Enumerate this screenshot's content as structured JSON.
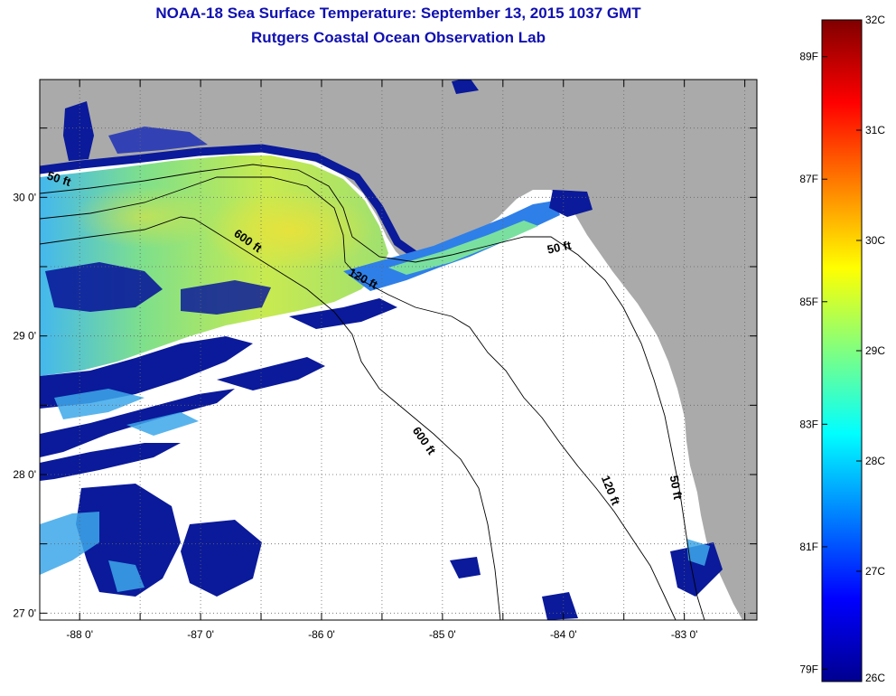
{
  "title_line1": "NOAA-18 Sea Surface Temperature:  September 13, 2015 1037 GMT",
  "title_line2": "Rutgers Coastal Ocean Observation Lab",
  "map": {
    "lon_range": [
      -88.33,
      -82.4
    ],
    "lat_range": [
      26.95,
      30.85
    ],
    "lat_ticks": [
      {
        "value": 30,
        "label": "30 0'"
      },
      {
        "value": 29,
        "label": "29 0'"
      },
      {
        "value": 28,
        "label": "28 0'"
      },
      {
        "value": 27,
        "label": "27 0'"
      }
    ],
    "lon_ticks": [
      {
        "value": -88,
        "label": "-88 0'"
      },
      {
        "value": -87,
        "label": "-87 0'"
      },
      {
        "value": -86,
        "label": "-86 0'"
      },
      {
        "value": -85,
        "label": "-85 0'"
      },
      {
        "value": -84,
        "label": "-84 0'"
      },
      {
        "value": -83,
        "label": "-83 0'"
      }
    ],
    "grid": "dotted",
    "land_color": "#aaaaaa",
    "cloud_color": "#ffffff",
    "contour_labels": [
      {
        "text": "50 ft"
      },
      {
        "text": "600 ft"
      },
      {
        "text": "120 ft"
      },
      {
        "text": "50 ft"
      },
      {
        "text": "600 ft"
      },
      {
        "text": "120 ft"
      },
      {
        "text": "50 ft"
      }
    ]
  },
  "colorbar": {
    "celsius_range": [
      26,
      32
    ],
    "fahrenheit_range": [
      79,
      90
    ],
    "celsius_labels": [
      "32C",
      "31C",
      "30C",
      "29C",
      "28C",
      "27C",
      "26C"
    ],
    "fahrenheit_labels": [
      "89F",
      "87F",
      "85F",
      "83F",
      "81F",
      "79F"
    ],
    "fahrenheit_values": [
      89,
      87,
      85,
      83,
      81,
      79
    ],
    "colors": [
      "#00008f",
      "#0000ff",
      "#0080ff",
      "#00ffff",
      "#80ff80",
      "#ffff00",
      "#ff8000",
      "#ff0000",
      "#800000"
    ]
  }
}
